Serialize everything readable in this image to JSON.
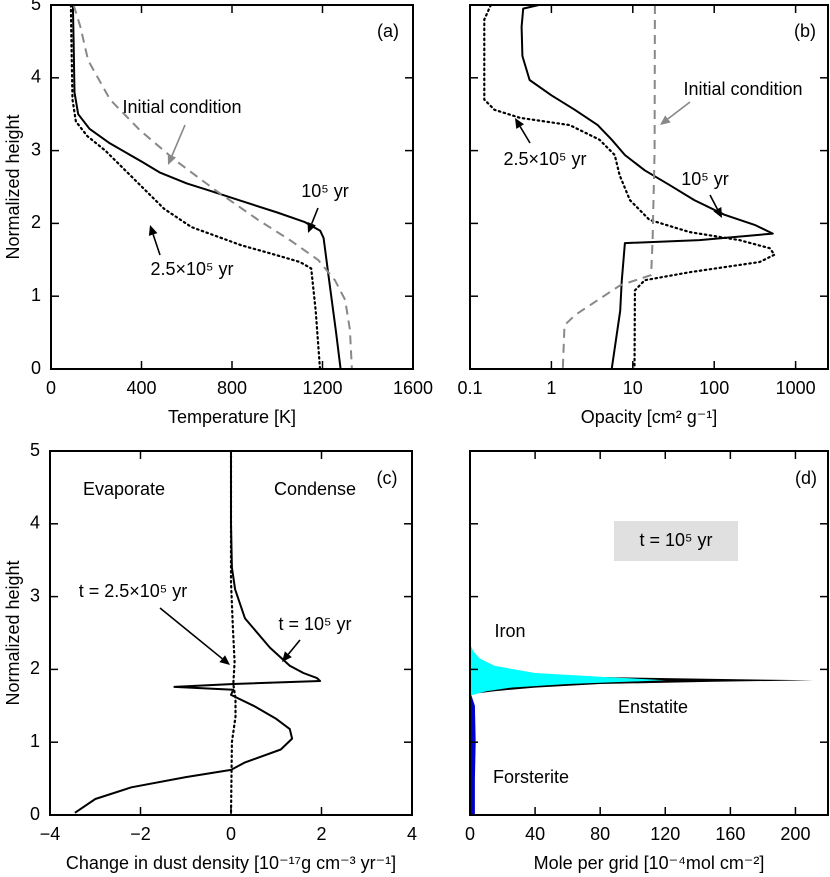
{
  "chart_data": [
    {
      "type": "line",
      "label": "(a)",
      "x_label": "Temperature [K]",
      "y_label": "Normalized height",
      "xlim": [
        0,
        1600
      ],
      "xticks": [
        0,
        400,
        800,
        1200,
        1600
      ],
      "ylim": [
        0,
        5
      ],
      "yticks": [
        0,
        1,
        2,
        3,
        4,
        5
      ],
      "series": [
        {
          "name": "10⁵ yr",
          "color": "#000000",
          "dash": "solid",
          "x": [
            97,
            100,
            104,
            120,
            170,
            260,
            400,
            480,
            600,
            700,
            850,
            1000,
            1120,
            1190,
            1205,
            1230,
            1260,
            1280
          ],
          "values": [
            5,
            4.5,
            3.8,
            3.5,
            3.3,
            3.1,
            2.85,
            2.7,
            2.55,
            2.45,
            2.3,
            2.15,
            2.02,
            1.9,
            1.8,
            1.2,
            0.5,
            0
          ]
        },
        {
          "name": "2.5×10⁵ yr",
          "color": "#000000",
          "dash": "dotted",
          "x": [
            88,
            90,
            95,
            110,
            160,
            240,
            370,
            500,
            620,
            840,
            990,
            1100,
            1150,
            1170,
            1189
          ],
          "values": [
            5,
            4.5,
            3.7,
            3.4,
            3.2,
            3.0,
            2.6,
            2.2,
            1.95,
            1.7,
            1.57,
            1.47,
            1.38,
            0.8,
            0
          ]
        },
        {
          "name": "Initial condition",
          "color": "#888888",
          "dash": "dashed",
          "x": [
            100,
            130,
            164,
            261,
            393,
            548,
            725,
            915,
            1056,
            1180,
            1255,
            1300,
            1321,
            1330
          ],
          "values": [
            5,
            4.7,
            4.24,
            3.7,
            3.28,
            2.87,
            2.46,
            2.05,
            1.77,
            1.5,
            1.22,
            0.95,
            0.54,
            0
          ]
        }
      ]
    },
    {
      "type": "line",
      "label": "(b)",
      "x_label": "Opacity [cm² g⁻¹]",
      "xscale": "log",
      "xlim": [
        0.1,
        2500
      ],
      "xticks": [
        0.1,
        1,
        10,
        100,
        1000
      ],
      "ylim": [
        0,
        5
      ],
      "yticks": [
        0,
        1,
        2,
        3,
        4,
        5
      ],
      "series": [
        {
          "name": "10⁵ yr",
          "color": "#000000",
          "dash": "solid",
          "x": [
            0.7,
            0.45,
            0.43,
            0.44,
            0.54,
            1.0,
            1.94,
            3.7,
            5.5,
            8.0,
            14,
            28,
            57,
            133,
            314,
            525,
            66,
            8,
            7.3,
            7.0,
            5.5
          ],
          "values": [
            5,
            4.95,
            4.7,
            4.3,
            3.97,
            3.76,
            3.56,
            3.35,
            3.15,
            2.94,
            2.73,
            2.53,
            2.32,
            2.12,
            1.98,
            1.86,
            1.77,
            1.73,
            1.2,
            0.8,
            0
          ]
        },
        {
          "name": "2.5×10⁵ yr",
          "color": "#000000",
          "dash": "dotted",
          "x": [
            0.18,
            0.15,
            0.15,
            0.2,
            0.41,
            1.68,
            3.9,
            6.0,
            6.9,
            9.2,
            16,
            50,
            204,
            480,
            550,
            362,
            50,
            14,
            10.6,
            10.5
          ],
          "values": [
            5,
            4.8,
            3.7,
            3.56,
            3.45,
            3.35,
            3.15,
            2.94,
            2.66,
            2.32,
            2.05,
            1.88,
            1.77,
            1.66,
            1.57,
            1.47,
            1.33,
            1.22,
            1.08,
            0
          ]
        },
        {
          "name": "Initial condition",
          "color": "#888888",
          "dash": "dashed",
          "x": [
            18.7,
            18.5,
            17.5,
            16.8,
            7,
            1.95,
            1.45,
            1.38
          ],
          "values": [
            5,
            3.0,
            1.77,
            1.29,
            1.15,
            0.74,
            0.6,
            0
          ]
        }
      ]
    },
    {
      "type": "line",
      "label": "(c)",
      "x_label": "Change in dust density [10⁻¹⁷g cm⁻³ yr⁻¹]",
      "y_label": "Normalized height",
      "annotations": [
        "Evaporate",
        "Condense"
      ],
      "xlim": [
        -4,
        4
      ],
      "xticks": [
        {
          "value": -4,
          "label": "−4"
        },
        {
          "value": -2,
          "label": "−2"
        },
        0,
        2,
        4
      ],
      "ylim": [
        0,
        5
      ],
      "yticks": [
        0,
        1,
        2,
        3,
        4,
        5
      ],
      "series": [
        {
          "name": "t = 10⁵ yr",
          "color": "#000000",
          "dash": "solid",
          "x": [
            0,
            0,
            0.02,
            0.09,
            0.31,
            0.86,
            1.3,
            1.6,
            1.9,
            1.97,
            0.05,
            -1.25,
            0.05,
            0.0,
            0.5,
            1.0,
            1.3,
            1.35,
            1.1,
            0.3,
            0.0,
            -1.0,
            -2.2,
            -3.0,
            -3.45
          ],
          "values": [
            5,
            4,
            3.4,
            3.1,
            2.7,
            2.3,
            2.05,
            1.95,
            1.88,
            1.84,
            1.8,
            1.76,
            1.72,
            1.65,
            1.5,
            1.32,
            1.18,
            1.05,
            0.9,
            0.72,
            0.62,
            0.52,
            0.38,
            0.22,
            0.03
          ]
        },
        {
          "name": "t = 2.5×10⁵ yr",
          "color": "#000000",
          "dash": "dotted",
          "x": [
            0,
            0,
            0.04,
            0.08,
            0.05,
            0.1,
            0.1,
            0.02,
            0
          ],
          "values": [
            5,
            3.2,
            2.6,
            2.1,
            1.8,
            1.6,
            1.35,
            1.0,
            0
          ]
        }
      ]
    },
    {
      "type": "area",
      "label": "(d)",
      "x_label": "Mole per grid [10⁻⁴mol cm⁻²]",
      "annotations": [
        "t = 10⁵ yr"
      ],
      "xlim": [
        0,
        220
      ],
      "xticks": [
        0,
        40,
        80,
        120,
        160,
        200
      ],
      "ylim": [
        0,
        5
      ],
      "yticks": [
        0,
        1,
        2,
        3,
        4,
        5
      ],
      "series": [
        {
          "name": "Enstatite",
          "color": "#000000",
          "x": [
            0,
            20,
            70,
            150,
            211,
            150,
            80,
            40,
            15,
            0
          ],
          "values": [
            2.0,
            1.95,
            1.9,
            1.87,
            1.85,
            1.83,
            1.8,
            1.75,
            1.7,
            1.66
          ]
        },
        {
          "name": "Iron",
          "color": "#00ffff",
          "x": [
            0,
            2,
            6,
            15,
            40,
            80,
            120,
            60,
            25,
            10,
            3,
            0
          ],
          "values": [
            2.35,
            2.25,
            2.15,
            2.05,
            1.95,
            1.9,
            1.85,
            1.8,
            1.75,
            1.7,
            1.66,
            1.64
          ]
        },
        {
          "name": "Forsterite",
          "color": "#0000cc",
          "x": [
            0,
            3,
            3.5,
            3,
            3,
            0
          ],
          "values": [
            1.7,
            1.5,
            1,
            0.5,
            0,
            0
          ]
        }
      ]
    }
  ]
}
